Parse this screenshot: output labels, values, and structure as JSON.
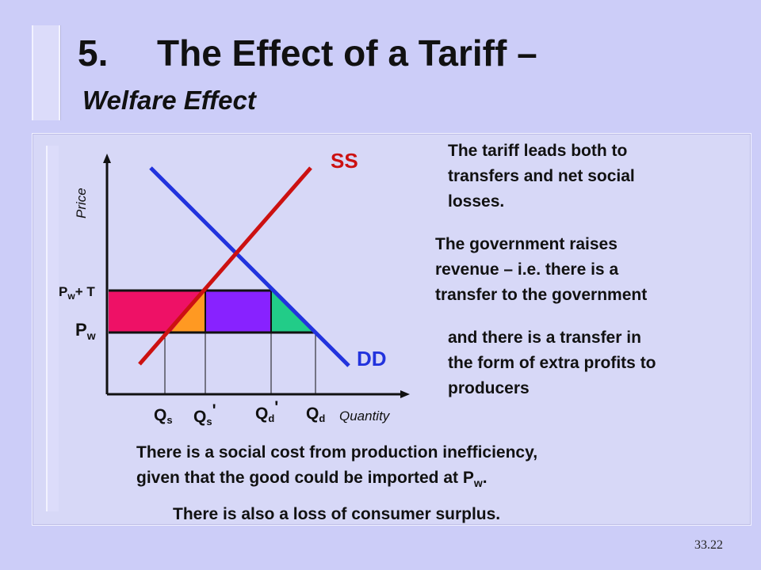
{
  "slide": {
    "title_number": "5.",
    "title_main": "The Effect of a Tariff –",
    "subtitle": "Welfare Effect",
    "page_number": "33.22"
  },
  "diagram": {
    "y_axis_label": "Price",
    "x_axis_label": "Quantity",
    "supply_label": "SS",
    "demand_label": "DD",
    "price_tariff": {
      "main": "P",
      "sub": "w",
      "suffix": "+ T"
    },
    "price_world": {
      "main": "P",
      "sub": "w"
    },
    "quantities": [
      {
        "main": "Q",
        "sub": "s",
        "prime": ""
      },
      {
        "main": "Q",
        "sub": "s",
        "prime": "'"
      },
      {
        "main": "Q",
        "sub": "d",
        "prime": "'"
      },
      {
        "main": "Q",
        "sub": "d",
        "prime": ""
      }
    ],
    "colors": {
      "supply": "#cc1111",
      "demand": "#2233dd",
      "producer_transfer": "#ee1166",
      "production_loss": "#ff9922",
      "government_revenue": "#8822ff",
      "consumption_loss": "#22cc88"
    }
  },
  "notes": {
    "note1": [
      "The tariff leads both to",
      "transfers and net social",
      "losses."
    ],
    "note2": [
      "The government raises",
      "revenue – i.e. there is a",
      "transfer to the government"
    ],
    "note3": [
      "and there is a transfer in",
      "the form of extra profits to",
      "producers"
    ],
    "bottom1_line1": "There is a social cost from production inefficiency,",
    "bottom1_line2_pre": "given that the good could be imported at P",
    "bottom1_line2_sub": "w",
    "bottom1_line2_post": ".",
    "bottom2": "There is also a loss of consumer surplus."
  }
}
